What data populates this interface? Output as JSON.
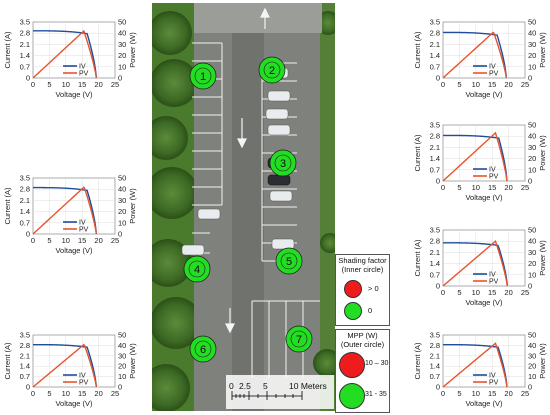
{
  "charts": [
    {
      "id": "chart-1",
      "voc": 19.3,
      "vknee": 16.5,
      "isc": 2.95,
      "mpp_v": 15.5,
      "mpp_p": 42
    },
    {
      "id": "chart-2",
      "voc": 19.3,
      "vknee": 16.5,
      "isc": 2.9,
      "mpp_v": 15.6,
      "mpp_p": 42
    },
    {
      "id": "chart-3",
      "voc": 19.3,
      "vknee": 16.5,
      "isc": 2.85,
      "mpp_v": 15.4,
      "mpp_p": 41
    },
    {
      "id": "chart-4",
      "voc": 19.5,
      "vknee": 17.0,
      "isc": 2.85,
      "mpp_v": 16.0,
      "mpp_p": 43
    },
    {
      "id": "chart-5",
      "voc": 19.6,
      "vknee": 16.8,
      "isc": 2.7,
      "mpp_v": 16.0,
      "mpp_p": 40
    },
    {
      "id": "chart-6",
      "voc": 19.3,
      "vknee": 16.5,
      "isc": 2.85,
      "mpp_v": 15.6,
      "mpp_p": 41
    },
    {
      "id": "chart-7",
      "voc": 19.5,
      "vknee": 16.8,
      "isc": 2.85,
      "mpp_v": 16.0,
      "mpp_p": 42
    }
  ],
  "axes": {
    "xlabel": "Voltage (V)",
    "ylabel_left": "Current (A)",
    "ylabel_right": "Power (W)",
    "xticks": [
      "0",
      "5",
      "10",
      "15",
      "20",
      "25"
    ],
    "yticks_left": [
      "0",
      "0.7",
      "1.4",
      "2.1",
      "2.8",
      "3.5"
    ],
    "yticks_right": [
      "0",
      "10",
      "20",
      "30",
      "40",
      "50"
    ],
    "legend": [
      "IV",
      "PV"
    ]
  },
  "colors": {
    "iv": "#1f4e9c",
    "pv": "#e8542e",
    "red": "#ee1c1c",
    "green": "#22dd22"
  },
  "markers": [
    {
      "label": "1"
    },
    {
      "label": "2"
    },
    {
      "label": "3"
    },
    {
      "label": "4"
    },
    {
      "label": "5"
    },
    {
      "label": "6"
    },
    {
      "label": "7"
    }
  ],
  "shading_legend": {
    "title_line1": "Shading factor",
    "title_line2": "(Inner circle)",
    "red_label": "> 0",
    "green_label": "0"
  },
  "mpp_legend": {
    "title": "MPP (W)",
    "subtitle": "(Outer circle)",
    "red_label": "10 – 30",
    "green_label": "31 - 35"
  },
  "scale_bar": {
    "ticks": [
      "0",
      "2.5",
      "5",
      "10 Meters"
    ]
  }
}
